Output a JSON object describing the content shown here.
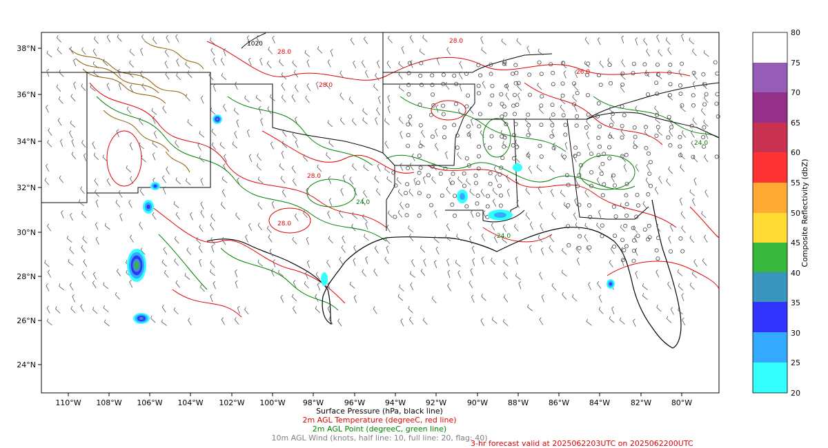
{
  "map": {
    "lat_ticks": [
      "38°N",
      "36°N",
      "34°N",
      "32°N",
      "30°N",
      "28°N",
      "26°N",
      "24°N"
    ],
    "lon_ticks": [
      "110°W",
      "108°W",
      "106°W",
      "104°W",
      "102°W",
      "100°W",
      "98°W",
      "96°W",
      "94°W",
      "92°W",
      "90°W",
      "88°W",
      "86°W",
      "84°W",
      "82°W",
      "80°W"
    ],
    "contour_labels": [
      {
        "text": "28.0",
        "color": "#e00000"
      },
      {
        "text": "24.0",
        "color": "#008000"
      },
      {
        "text": "28.0",
        "color": "#e00000"
      },
      {
        "text": "24.0",
        "color": "#008000"
      },
      {
        "text": "28.0",
        "color": "#e00000"
      },
      {
        "text": "26.0",
        "color": "#e00000"
      },
      {
        "text": "1020",
        "color": "#000000"
      },
      {
        "text": "28.0",
        "color": "#e00000"
      },
      {
        "text": "24.0",
        "color": "#008000"
      },
      {
        "text": "28.0",
        "color": "#e00000"
      }
    ]
  },
  "colorbar": {
    "label": "Composite Reflectivity (dbZ)",
    "ticks": [
      "20",
      "25",
      "30",
      "35",
      "40",
      "45",
      "50",
      "55",
      "60",
      "65",
      "70",
      "75",
      "80"
    ],
    "colors": [
      "#33ffff",
      "#33aaff",
      "#3333ff",
      "#3a96bd",
      "#39b83e",
      "#ffdb33",
      "#ffaa33",
      "#ff3333",
      "#c83250",
      "#943087",
      "#955db6",
      "#ffffff"
    ]
  },
  "captions": {
    "pressure": "Surface Pressure (hPa, black line)",
    "temperature": "2m AGL Temperature (degreeC, red line)",
    "dewpoint": "2m AGL Point (degreeC, green line)",
    "wind": "10m AGL Wind (knots, half line: 10, full line: 20, flag: 40)",
    "valid": "3-hr forecast valid at 2025062203UTC on 2025062200UTC"
  }
}
